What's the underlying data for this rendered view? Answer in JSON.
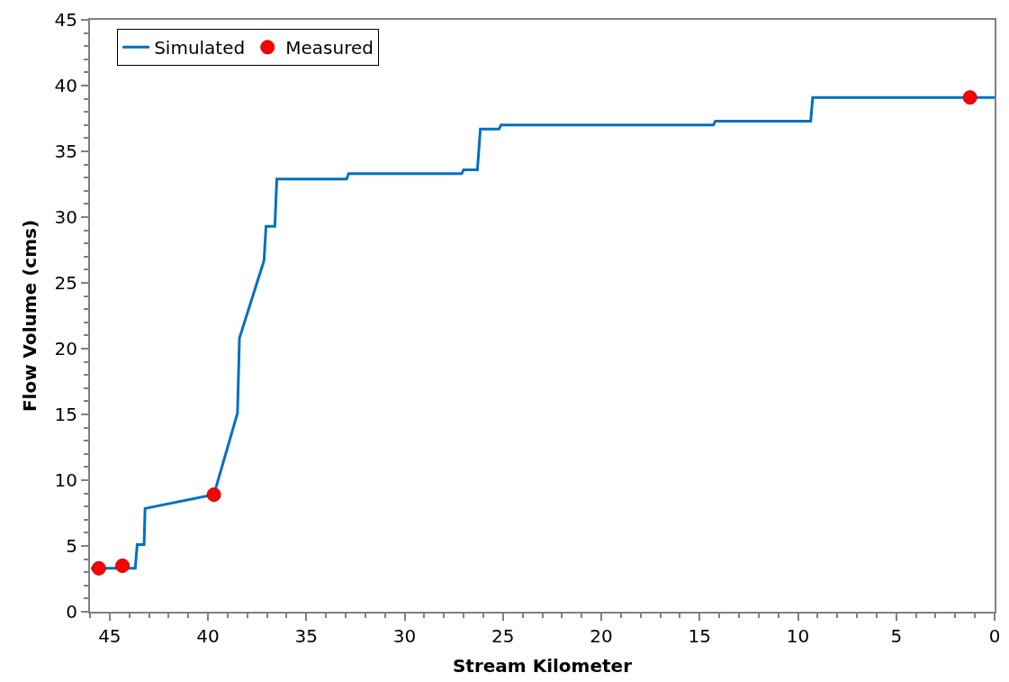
{
  "chart_data": {
    "type": "line",
    "xlabel": "Stream Kilometer",
    "ylabel": "Flow Volume (cms)",
    "xlim": [
      46,
      0
    ],
    "xticks": [
      45,
      40,
      35,
      30,
      25,
      20,
      15,
      10,
      5,
      0
    ],
    "ylim": [
      0,
      45
    ],
    "yticks": [
      0,
      5,
      10,
      15,
      20,
      25,
      30,
      35,
      40,
      45
    ],
    "legend": "top left",
    "series": [
      {
        "name": "Simulated",
        "color": "#0070c0",
        "marker": "none",
        "line_style": "solid",
        "x": [
          45.95,
          43.7,
          43.6,
          43.25,
          43.2,
          39.7,
          38.5,
          38.4,
          37.15,
          37.05,
          36.6,
          36.5,
          32.95,
          32.85,
          27.1,
          27.0,
          26.3,
          26.15,
          25.2,
          25.1,
          14.3,
          14.2,
          9.35,
          9.25,
          0
        ],
        "values": [
          3.3,
          3.3,
          5.1,
          5.1,
          7.85,
          8.9,
          15.1,
          20.8,
          26.7,
          29.3,
          29.3,
          32.9,
          32.9,
          33.3,
          33.3,
          33.6,
          33.6,
          36.7,
          36.7,
          37.0,
          37.0,
          37.3,
          37.3,
          39.1,
          39.1
        ]
      },
      {
        "name": "Measured",
        "type": "scatter",
        "color": "#ff0000",
        "marker": "circle",
        "x": [
          45.55,
          44.35,
          39.7,
          1.25
        ],
        "values": [
          3.3,
          3.5,
          8.9,
          39.1
        ]
      }
    ]
  }
}
